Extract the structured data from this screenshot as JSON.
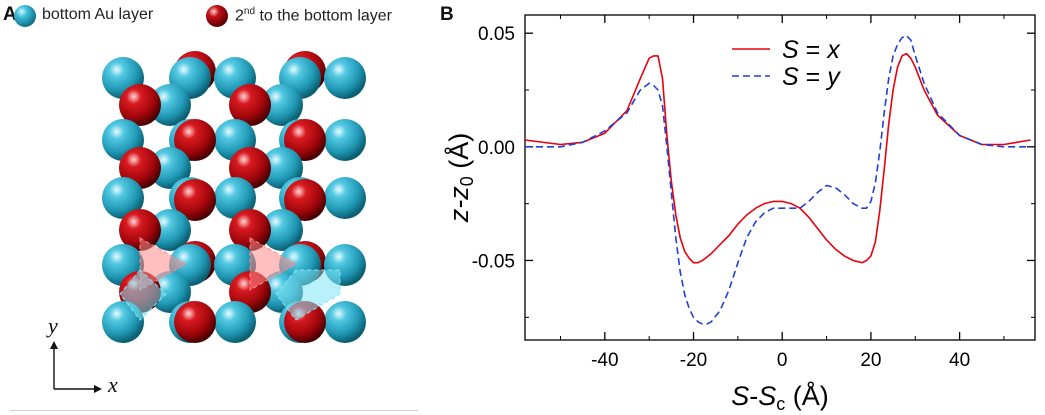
{
  "panel_a": {
    "letter": "A",
    "legend": {
      "bottom_label": "bottom Au layer",
      "second_prefix": "2",
      "second_sup": "nd",
      "second_suffix": " to the bottom layer"
    },
    "axis_x": "x",
    "axis_y": "y",
    "colors": {
      "bottom": "#2aa7c4",
      "second": "#b3070d",
      "triangle_red": "#ff8a8a",
      "triangle_cyan": "#7fe6f5"
    }
  },
  "panel_b": {
    "letter": "B"
  },
  "chart_data": {
    "type": "line",
    "xlabel_main": "S",
    "xlabel_sub": "S",
    "xlabel_subscript": "c",
    "xlabel_unit": "(Å)",
    "ylabel_main": "z-z",
    "ylabel_subscript": "0",
    "ylabel_unit": "(Å)",
    "xlim": [
      -58,
      57
    ],
    "ylim": [
      -0.085,
      0.058
    ],
    "xticks": [
      -40,
      -20,
      0,
      20,
      40
    ],
    "xtick_labels": [
      "-40",
      "-20",
      "0",
      "20",
      "40"
    ],
    "yticks": [
      0.05,
      0.0,
      -0.05
    ],
    "ytick_labels": [
      "0.05",
      "0.00",
      "-0.05"
    ],
    "legend_position": "top-center",
    "series": [
      {
        "name": "S = x",
        "name_parts": [
          "S",
          " = ",
          "x"
        ],
        "color": "#e8000b",
        "dash": "solid",
        "x": [
          -58,
          -50,
          -45,
          -40,
          -35,
          -32,
          -30,
          -29,
          -28,
          -27,
          -26,
          -25,
          -24,
          -23,
          -22,
          -21,
          -20,
          -19,
          -18,
          -16,
          -14,
          -12,
          -10,
          -8,
          -6,
          -4,
          -2,
          0,
          2,
          4,
          6,
          8,
          10,
          12,
          14,
          16,
          18,
          19,
          20,
          21,
          22,
          23,
          24,
          25,
          26,
          27,
          28,
          29,
          30,
          32,
          35,
          40,
          45,
          50,
          56
        ],
        "y": [
          0.003,
          0.001,
          0.002,
          0.006,
          0.016,
          0.03,
          0.039,
          0.04,
          0.04,
          0.03,
          0.005,
          -0.015,
          -0.03,
          -0.04,
          -0.046,
          -0.049,
          -0.051,
          -0.051,
          -0.05,
          -0.047,
          -0.043,
          -0.039,
          -0.034,
          -0.03,
          -0.027,
          -0.025,
          -0.024,
          -0.024,
          -0.025,
          -0.027,
          -0.031,
          -0.036,
          -0.041,
          -0.045,
          -0.048,
          -0.05,
          -0.051,
          -0.05,
          -0.048,
          -0.042,
          -0.028,
          -0.01,
          0.01,
          0.025,
          0.035,
          0.04,
          0.041,
          0.039,
          0.035,
          0.025,
          0.014,
          0.005,
          0.001,
          0.001,
          0.003
        ]
      },
      {
        "name": "S = y",
        "name_parts": [
          "S",
          " = ",
          "y"
        ],
        "color": "#1f3fd8",
        "dash": "dashed",
        "x": [
          -58,
          -50,
          -45,
          -40,
          -35,
          -32,
          -30,
          -29,
          -28,
          -27,
          -26,
          -25,
          -24,
          -23,
          -22,
          -21,
          -20,
          -19,
          -18,
          -17,
          -16,
          -14,
          -12,
          -10,
          -8,
          -6,
          -4,
          -2,
          0,
          2,
          4,
          6,
          8,
          10,
          12,
          14,
          16,
          18,
          19,
          20,
          21,
          22,
          23,
          24,
          25,
          26,
          27,
          28,
          29,
          30,
          32,
          35,
          40,
          45,
          50,
          56
        ],
        "y": [
          0.0,
          0.0,
          0.002,
          0.007,
          0.015,
          0.025,
          0.028,
          0.027,
          0.025,
          0.018,
          0.0,
          -0.02,
          -0.04,
          -0.055,
          -0.065,
          -0.071,
          -0.075,
          -0.077,
          -0.078,
          -0.078,
          -0.077,
          -0.072,
          -0.063,
          -0.051,
          -0.04,
          -0.033,
          -0.029,
          -0.027,
          -0.027,
          -0.027,
          -0.027,
          -0.024,
          -0.02,
          -0.017,
          -0.018,
          -0.021,
          -0.025,
          -0.027,
          -0.027,
          -0.024,
          -0.016,
          -0.002,
          0.015,
          0.03,
          0.04,
          0.045,
          0.048,
          0.049,
          0.047,
          0.04,
          0.028,
          0.015,
          0.005,
          0.001,
          0.0,
          0.0
        ]
      }
    ]
  }
}
